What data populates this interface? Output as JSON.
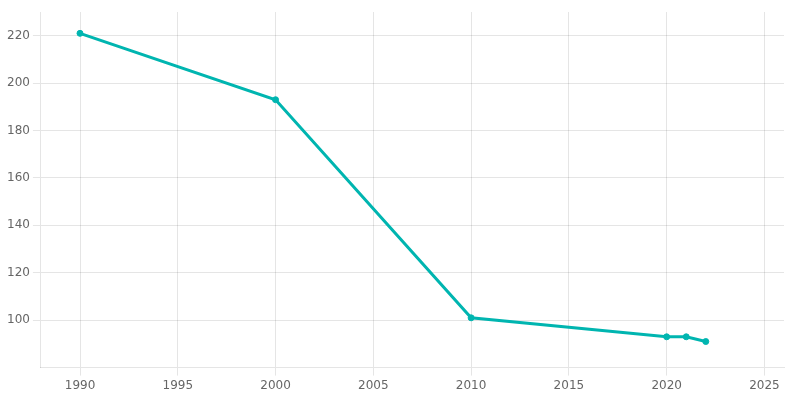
{
  "chart_data": {
    "type": "line",
    "x": [
      1990,
      2000,
      2010,
      2020,
      2021,
      2022
    ],
    "values": [
      221,
      193,
      101,
      93,
      93,
      91
    ],
    "color": "#00b5b0",
    "marker": "circle",
    "xlim": [
      1988,
      2026
    ],
    "ylim": [
      80,
      230
    ],
    "xticks": [
      1990,
      1995,
      2000,
      2005,
      2010,
      2015,
      2020,
      2025
    ],
    "yticks": [
      100,
      120,
      140,
      160,
      180,
      200,
      220
    ],
    "grid": true
  }
}
